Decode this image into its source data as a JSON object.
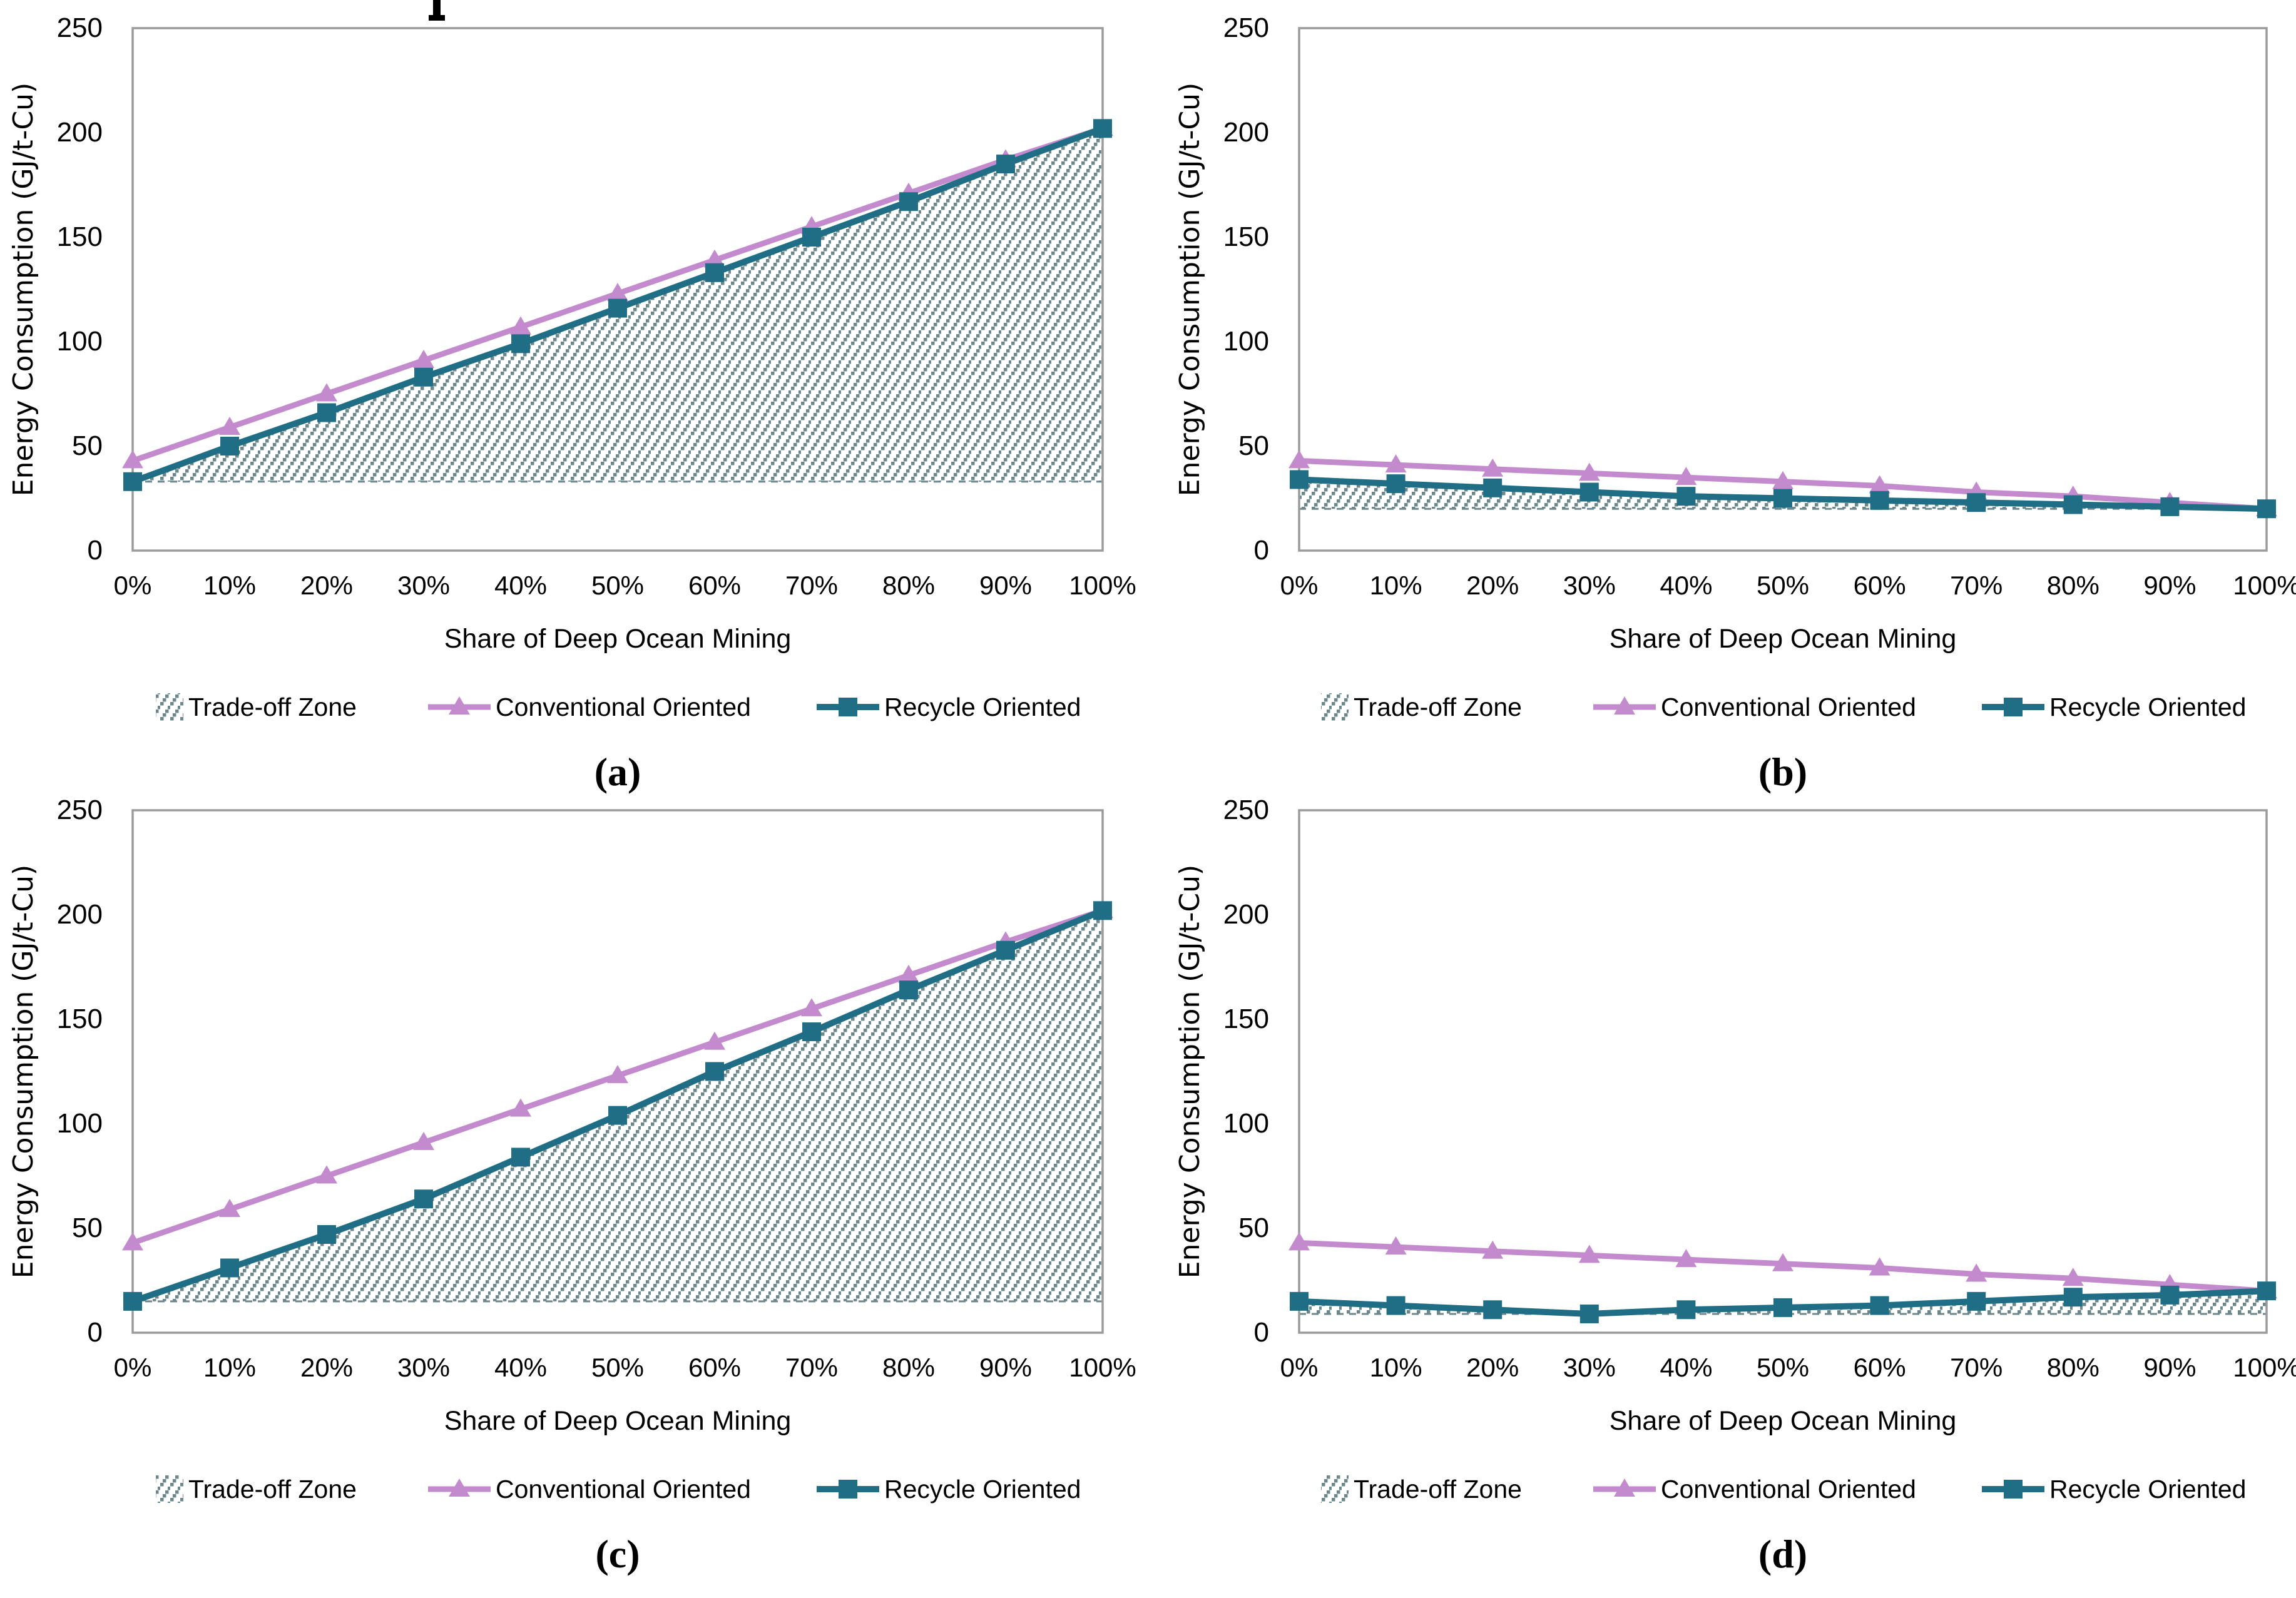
{
  "page": {
    "background": "#ffffff",
    "cropped_title_fragment": true
  },
  "colors": {
    "conventional": "#c38bce",
    "recycle": "#1f6e85",
    "hatch": "#6d888d",
    "axis_border": "#9b9b9b",
    "text": "#000000"
  },
  "legend": {
    "items": [
      {
        "label": "Trade-off Zone",
        "swatch": "hatch-square"
      },
      {
        "label": "Conventional Oriented",
        "swatch": "line-with-triangle-marker"
      },
      {
        "label": "Recycle Oriented",
        "swatch": "line-with-square-marker"
      }
    ],
    "position": "bottom"
  },
  "axes": {
    "x_label": "Share of Deep Ocean Mining",
    "y_label": "Energy Consumption (GJ/t-Cu)",
    "x_ticks": [
      "0%",
      "10%",
      "20%",
      "30%",
      "40%",
      "50%",
      "60%",
      "70%",
      "80%",
      "90%",
      "100%"
    ],
    "y_ticks": [
      0,
      50,
      100,
      150,
      200,
      250
    ],
    "ylim": [
      0,
      250
    ],
    "grid": false
  },
  "chart_data": [
    {
      "id": "a",
      "caption": "(a)",
      "type": "line",
      "x": [
        "0%",
        "10%",
        "20%",
        "30%",
        "40%",
        "50%",
        "60%",
        "70%",
        "80%",
        "90%",
        "100%"
      ],
      "series": [
        {
          "name": "Conventional Oriented",
          "marker": "triangle",
          "values": [
            43,
            59,
            75,
            91,
            107,
            123,
            139,
            155,
            171,
            187,
            202
          ]
        },
        {
          "name": "Recycle Oriented",
          "marker": "square",
          "values": [
            33,
            50,
            66,
            83,
            99,
            116,
            133,
            150,
            167,
            185,
            202
          ]
        }
      ],
      "tradeoff_zone": {
        "upper_boundary": "Recycle Oriented",
        "baseline_value": 33
      }
    },
    {
      "id": "b",
      "caption": "(b)",
      "type": "line",
      "x": [
        "0%",
        "10%",
        "20%",
        "30%",
        "40%",
        "50%",
        "60%",
        "70%",
        "80%",
        "90%",
        "100%"
      ],
      "series": [
        {
          "name": "Conventional Oriented",
          "marker": "triangle",
          "values": [
            43,
            41,
            39,
            37,
            35,
            33,
            31,
            28,
            26,
            23,
            20
          ]
        },
        {
          "name": "Recycle Oriented",
          "marker": "square",
          "values": [
            34,
            32,
            30,
            28,
            26,
            25,
            24,
            23,
            22,
            21,
            20
          ]
        }
      ],
      "tradeoff_zone": {
        "upper_boundary": "Recycle Oriented",
        "baseline_value": 20
      }
    },
    {
      "id": "c",
      "caption": "(c)",
      "type": "line",
      "x": [
        "0%",
        "10%",
        "20%",
        "30%",
        "40%",
        "50%",
        "60%",
        "70%",
        "80%",
        "90%",
        "100%"
      ],
      "series": [
        {
          "name": "Conventional Oriented",
          "marker": "triangle",
          "values": [
            43,
            59,
            75,
            91,
            107,
            123,
            139,
            155,
            171,
            187,
            202
          ]
        },
        {
          "name": "Recycle Oriented",
          "marker": "square",
          "values": [
            15,
            31,
            47,
            64,
            84,
            104,
            125,
            144,
            164,
            183,
            202
          ]
        }
      ],
      "tradeoff_zone": {
        "upper_boundary": "Recycle Oriented",
        "baseline_value": 15
      }
    },
    {
      "id": "d",
      "caption": "(d)",
      "type": "line",
      "x": [
        "0%",
        "10%",
        "20%",
        "30%",
        "40%",
        "50%",
        "60%",
        "70%",
        "80%",
        "90%",
        "100%"
      ],
      "series": [
        {
          "name": "Conventional Oriented",
          "marker": "triangle",
          "values": [
            43,
            41,
            39,
            37,
            35,
            33,
            31,
            28,
            26,
            23,
            20
          ]
        },
        {
          "name": "Recycle Oriented",
          "marker": "square",
          "values": [
            15,
            13,
            11,
            9,
            11,
            12,
            13,
            15,
            17,
            18,
            20
          ]
        }
      ],
      "tradeoff_zone": {
        "upper_boundary": "Recycle Oriented",
        "baseline_value": 9
      }
    }
  ]
}
